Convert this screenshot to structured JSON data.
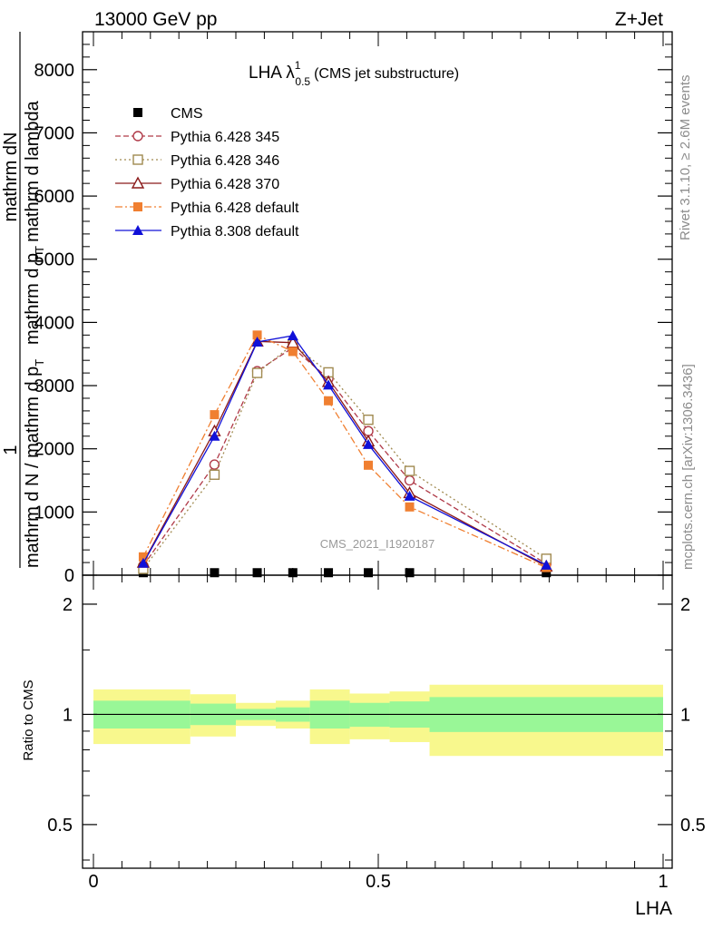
{
  "header": {
    "left": "13000 GeV pp",
    "right": "Z+Jet"
  },
  "side_text": {
    "rivet": "Rivet 3.1.10, ≥ 2.6M events",
    "mcplots": "mcplots.cern.ch [arXiv:1306.3436]"
  },
  "watermark": "CMS_2021_I1920187",
  "colors": {
    "cms": "#000000",
    "p345": "#b03a48",
    "p346": "#a08a50",
    "p370": "#8b1a1a",
    "p6def": "#f07f30",
    "p8def": "#1010d8",
    "band_inner": "#99f797",
    "band_outer": "#f8f88d"
  },
  "chart_data": [
    {
      "type": "line",
      "title": "LHA λ",
      "title_sup": "1",
      "title_sub": "0.5",
      "title_suffix": "(CMS jet substructure)",
      "ylabel": {
        "one": "1",
        "dN": "mathrm dN",
        "den": "mathrm d N / mathrm d p",
        "den_T": "T",
        "num_right": "mathrm d p",
        "num_right_T": "T",
        "num_right2": "mathrm d lambda",
        "extra": "mathrm d p"
      },
      "ylim": [
        0,
        8600
      ],
      "xlim": [
        0,
        1
      ],
      "yticks": [
        0,
        1000,
        2000,
        3000,
        4000,
        5000,
        6000,
        7000,
        8000
      ],
      "ytick_labels": [
        "0",
        "1000",
        "2000",
        "3000",
        "4000",
        "5000",
        "6000",
        "7000",
        "8000"
      ],
      "legend_position": "top-left",
      "x": [
        0.0875,
        0.2125,
        0.2875,
        0.35,
        0.4125,
        0.4825,
        0.555,
        0.795
      ],
      "series": [
        {
          "name": "CMS",
          "key": "cms",
          "marker": "square-filled",
          "dash": "none",
          "values": [
            25,
            25,
            25,
            25,
            25,
            25,
            25,
            25
          ]
        },
        {
          "name": "Pythia 6.428 345",
          "key": "p345",
          "marker": "circle-open",
          "dash": "6,3",
          "values": [
            150,
            1750,
            3230,
            3600,
            3110,
            2280,
            1500,
            180
          ]
        },
        {
          "name": "Pythia 6.428 346",
          "key": "p346",
          "marker": "square-open",
          "dash": "2,3",
          "values": [
            100,
            1590,
            3200,
            3650,
            3210,
            2460,
            1650,
            260
          ]
        },
        {
          "name": "Pythia 6.428 370",
          "key": "p370",
          "marker": "triangle-open",
          "dash": "none",
          "values": [
            200,
            2280,
            3700,
            3680,
            3060,
            2120,
            1300,
            140
          ]
        },
        {
          "name": "Pythia 6.428 default",
          "key": "p6def",
          "marker": "square-filled",
          "dash": "8,3,2,3",
          "values": [
            290,
            2540,
            3800,
            3540,
            2760,
            1740,
            1080,
            120
          ]
        },
        {
          "name": "Pythia 8.308 default",
          "key": "p8def",
          "marker": "triangle-filled",
          "dash": "none",
          "values": [
            190,
            2200,
            3690,
            3790,
            3010,
            2070,
            1250,
            160
          ]
        }
      ]
    },
    {
      "type": "area",
      "ylabel": "Ratio to CMS",
      "xlabel": "LHA",
      "ylim": [
        0.38,
        2.4
      ],
      "yscale": "log",
      "xlim": [
        0,
        1
      ],
      "yticks": [
        0.5,
        1,
        2
      ],
      "ytick_labels": [
        "0.5",
        "1",
        "2"
      ],
      "xticks": [
        0,
        0.5,
        1
      ],
      "xtick_labels": [
        "0",
        "0.5",
        "1"
      ],
      "bins": [
        {
          "x0": 0.0,
          "x1": 0.17,
          "inner": [
            0.915,
            1.09
          ],
          "outer": [
            0.83,
            1.17
          ]
        },
        {
          "x0": 0.17,
          "x1": 0.25,
          "inner": [
            0.935,
            1.07
          ],
          "outer": [
            0.87,
            1.135
          ]
        },
        {
          "x0": 0.25,
          "x1": 0.32,
          "inner": [
            0.965,
            1.035
          ],
          "outer": [
            0.93,
            1.075
          ]
        },
        {
          "x0": 0.32,
          "x1": 0.38,
          "inner": [
            0.955,
            1.045
          ],
          "outer": [
            0.915,
            1.09
          ]
        },
        {
          "x0": 0.38,
          "x1": 0.45,
          "inner": [
            0.915,
            1.09
          ],
          "outer": [
            0.83,
            1.17
          ]
        },
        {
          "x0": 0.45,
          "x1": 0.52,
          "inner": [
            0.925,
            1.075
          ],
          "outer": [
            0.855,
            1.14
          ]
        },
        {
          "x0": 0.52,
          "x1": 0.59,
          "inner": [
            0.92,
            1.085
          ],
          "outer": [
            0.84,
            1.155
          ]
        },
        {
          "x0": 0.59,
          "x1": 1.0,
          "inner": [
            0.895,
            1.115
          ],
          "outer": [
            0.77,
            1.205
          ]
        }
      ]
    }
  ]
}
